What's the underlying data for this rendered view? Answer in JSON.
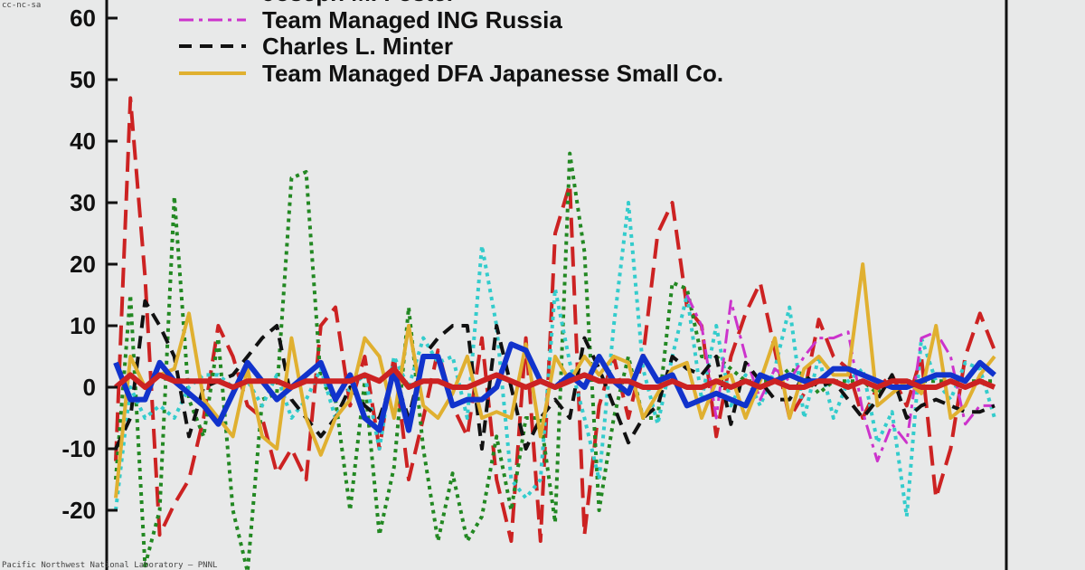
{
  "watermark_top": "cc-nc-sa",
  "watermark_bottom": "Pacific Northwest National Laboratory – PNNL",
  "chart_data": {
    "type": "line",
    "title": "",
    "xlabel": "",
    "ylabel": "",
    "ylim": [
      -29,
      64
    ],
    "xlim": [
      0,
      60
    ],
    "yticks": [
      "60",
      "50",
      "40",
      "30",
      "20",
      "10",
      "0",
      "-10",
      "-20"
    ],
    "ytick_values": [
      60,
      50,
      40,
      30,
      20,
      10,
      0,
      -10,
      -20
    ],
    "grid": false,
    "legend": {
      "placement": "top-left",
      "entries": [
        {
          "label": "Joseph M. Foster",
          "color": "#1a1a1a",
          "style": "solid"
        },
        {
          "label": "Team Managed ING Russia",
          "color": "#cc33cc",
          "style": "dashdot"
        },
        {
          "label": "Charles L. Minter",
          "color": "#111111",
          "style": "dashed"
        },
        {
          "label": "Team Managed DFA Japanesse Small Co.",
          "color": "#e0b030",
          "style": "solid"
        }
      ]
    },
    "series": [
      {
        "color": "#cc2222",
        "style": "longdash",
        "width": 4,
        "values": [
          -12,
          47,
          18,
          -24,
          -19,
          -15,
          -5,
          10,
          5,
          -3,
          -5,
          -14,
          -10,
          -15,
          10,
          13,
          -3,
          5,
          -10,
          5,
          -15,
          -5,
          6,
          -3,
          -8,
          8,
          -15,
          -25,
          8,
          -25,
          25,
          33,
          -24,
          -3,
          5,
          -5,
          5,
          25,
          30,
          13,
          10,
          -8,
          5,
          12,
          17,
          6,
          -5,
          -1,
          11,
          5,
          3,
          -5,
          0,
          2,
          -3,
          5,
          -18,
          -10,
          5,
          12,
          6
        ]
      },
      {
        "color": "#228822",
        "style": "dotted",
        "width": 4,
        "values": [
          -15,
          15,
          -29,
          -20,
          31,
          -2,
          -8,
          8,
          -20,
          -30,
          -2,
          -1,
          34,
          35,
          1,
          -2,
          -20,
          1,
          -24,
          -13,
          13,
          -10,
          -25,
          -14,
          -25,
          -21,
          -8,
          -20,
          -5,
          -5,
          -22,
          38,
          22,
          -20,
          -5,
          5,
          -5,
          -5,
          17,
          16,
          5,
          5,
          3,
          1,
          1,
          1,
          3,
          2,
          -1,
          1,
          1,
          1,
          -1,
          1,
          1,
          1,
          1,
          1,
          1,
          1,
          1
        ]
      },
      {
        "color": "#33cccc",
        "style": "dotted",
        "width": 4,
        "values": [
          -20,
          0,
          -5,
          -3,
          -5,
          0,
          2,
          2,
          0,
          1,
          -3,
          2,
          -5,
          -2,
          3,
          -5,
          0,
          2,
          -10,
          5,
          0,
          8,
          4,
          5,
          -5,
          23,
          10,
          -15,
          -18,
          -15,
          16,
          4,
          -5,
          -15,
          10,
          30,
          3,
          -6,
          5,
          15,
          -2,
          10,
          -3,
          2,
          -3,
          3,
          13,
          -5,
          5,
          -5,
          1,
          3,
          -9,
          -4,
          -21,
          8,
          1,
          -2,
          4,
          3,
          -5
        ]
      },
      {
        "color": "#cc33cc",
        "style": "dashdot",
        "width": 3,
        "values": [
          null,
          null,
          null,
          null,
          null,
          null,
          null,
          null,
          null,
          null,
          null,
          null,
          null,
          null,
          null,
          null,
          null,
          null,
          null,
          null,
          null,
          null,
          null,
          null,
          null,
          null,
          null,
          null,
          null,
          null,
          null,
          null,
          null,
          null,
          null,
          null,
          null,
          null,
          null,
          15,
          10,
          -5,
          14,
          5,
          -2,
          3,
          1,
          5,
          8,
          8,
          9,
          -4,
          -12,
          -6,
          -9,
          8,
          9,
          5,
          -6,
          -3,
          -3
        ]
      },
      {
        "color": "#111111",
        "style": "dashed",
        "width": 4,
        "values": [
          -10,
          -5,
          14,
          10,
          5,
          -8,
          0,
          1,
          2,
          5,
          8,
          10,
          -2,
          -5,
          -8,
          -5,
          0,
          -3,
          -5,
          2,
          -5,
          5,
          8,
          10,
          10,
          -10,
          10,
          0,
          -10,
          -5,
          -2,
          -5,
          8,
          3,
          -3,
          -9,
          -5,
          -3,
          5,
          3,
          2,
          5,
          -6,
          4,
          1,
          -2,
          -2,
          2,
          0,
          1,
          -2,
          -5,
          -2,
          2,
          -5,
          -3,
          -2,
          -3,
          -4,
          -4,
          -3
        ]
      },
      {
        "color": "#e0b030",
        "style": "solid",
        "width": 4,
        "values": [
          -18,
          5,
          0,
          2,
          3,
          12,
          -2,
          -5,
          -8,
          3,
          -8,
          -10,
          8,
          -5,
          -11,
          -5,
          -2,
          8,
          5,
          -5,
          10,
          -3,
          -5,
          -1,
          5,
          -5,
          -4,
          -5,
          7,
          -8,
          5,
          1,
          5,
          2,
          5,
          4,
          -5,
          -1,
          3,
          4,
          -5,
          1,
          2,
          -5,
          1,
          8,
          -5,
          3,
          5,
          2,
          2,
          20,
          -3,
          -1,
          1,
          -1,
          10,
          -5,
          -3,
          2,
          5
        ]
      },
      {
        "color": "#1133cc",
        "style": "solid",
        "width": 6,
        "values": [
          4,
          -2,
          -2,
          4,
          1,
          -1,
          -3,
          -6,
          -1,
          4,
          1,
          -2,
          0,
          2,
          4,
          -2,
          2,
          -5,
          -7,
          3,
          -7,
          5,
          5,
          -3,
          -2,
          -2,
          0,
          7,
          6,
          1,
          0,
          2,
          0,
          5,
          1,
          -1,
          5,
          1,
          2,
          -3,
          -2,
          -1,
          -2,
          -3,
          2,
          1,
          2,
          1,
          1,
          3,
          3,
          2,
          1,
          0,
          0,
          1,
          2,
          2,
          1,
          4,
          2
        ]
      },
      {
        "color": "#cc2222",
        "style": "solid",
        "width": 6,
        "values": [
          0,
          2,
          0,
          2,
          1,
          1,
          1,
          1,
          0,
          1,
          1,
          1,
          0,
          1,
          1,
          1,
          1,
          2,
          1,
          3,
          0,
          1,
          1,
          0,
          0,
          1,
          2,
          1,
          0,
          1,
          0,
          1,
          2,
          1,
          1,
          1,
          0,
          0,
          1,
          0,
          0,
          1,
          0,
          1,
          0,
          1,
          0,
          0,
          1,
          1,
          0,
          1,
          0,
          1,
          1,
          0,
          0,
          1,
          0,
          1,
          0
        ]
      }
    ]
  }
}
